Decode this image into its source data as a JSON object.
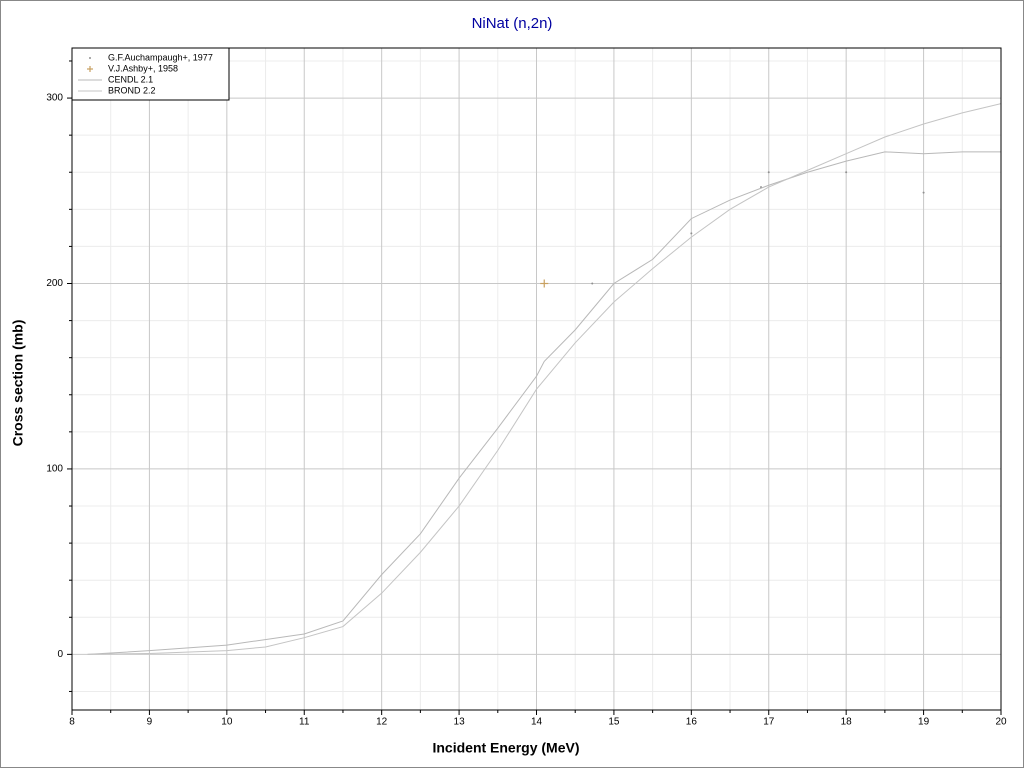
{
  "chart_data": {
    "type": "line",
    "title": "NiNat (n,2n)",
    "x_label": "Incident Energy (MeV)",
    "y_label": "Cross section (mb)",
    "xlim": [
      8,
      20
    ],
    "ylim": [
      -30,
      327
    ],
    "xticks": [
      8,
      9,
      10,
      11,
      12,
      13,
      14,
      15,
      16,
      17,
      18,
      19,
      20
    ],
    "yticks": [
      0,
      100,
      200,
      300
    ],
    "x_minor_grid": [
      8.5,
      9.5,
      10.5,
      11.5,
      12.5,
      13.5,
      14.5,
      15.5,
      16.5,
      17.5,
      18.5,
      19.5
    ],
    "y_minor_grid": [
      -20,
      20,
      40,
      60,
      80,
      120,
      140,
      160,
      180,
      220,
      240,
      260,
      280,
      320
    ],
    "grid": true,
    "legend": "upper left",
    "series": [
      {
        "name": "G.F.Auchampaugh+, 1977",
        "kind": "scatter",
        "marker": "dot",
        "color": "#909090",
        "x": [
          14.72,
          16.0,
          16.9,
          17.0,
          18.0,
          19.0
        ],
        "values": [
          200,
          227,
          252,
          260,
          260,
          249
        ]
      },
      {
        "name": "V.J.Ashby+, 1958",
        "kind": "scatter",
        "marker": "plus",
        "color": "#c8a060",
        "x": [
          14.1
        ],
        "values": [
          200
        ]
      },
      {
        "name": "CENDL 2.1",
        "kind": "line",
        "color": "#b8b8b8",
        "x": [
          8.2,
          9,
          10,
          11,
          11.5,
          12,
          12.5,
          13,
          13.5,
          14,
          14.1,
          14.5,
          15,
          15.5,
          16,
          16.5,
          17,
          17.5,
          18,
          18.5,
          19,
          19.5,
          20
        ],
        "values": [
          0,
          2,
          5,
          11,
          18,
          43,
          65,
          95,
          122,
          150,
          158,
          175,
          200,
          213,
          235,
          245,
          253,
          260,
          266,
          271,
          270,
          271,
          271
        ]
      },
      {
        "name": "BROND 2.2",
        "kind": "line",
        "color": "#c4c4c4",
        "x": [
          8.2,
          9,
          10,
          10.5,
          11,
          11.5,
          12,
          12.5,
          13,
          13.5,
          14,
          14.5,
          15,
          15.5,
          16,
          16.5,
          17,
          17.5,
          18,
          18.5,
          19,
          19.5,
          20
        ],
        "values": [
          0,
          0.5,
          2,
          4,
          9,
          15,
          33,
          55,
          80,
          110,
          143,
          168,
          190,
          208,
          225,
          240,
          252,
          261,
          270,
          279,
          286,
          292,
          297
        ]
      }
    ]
  }
}
